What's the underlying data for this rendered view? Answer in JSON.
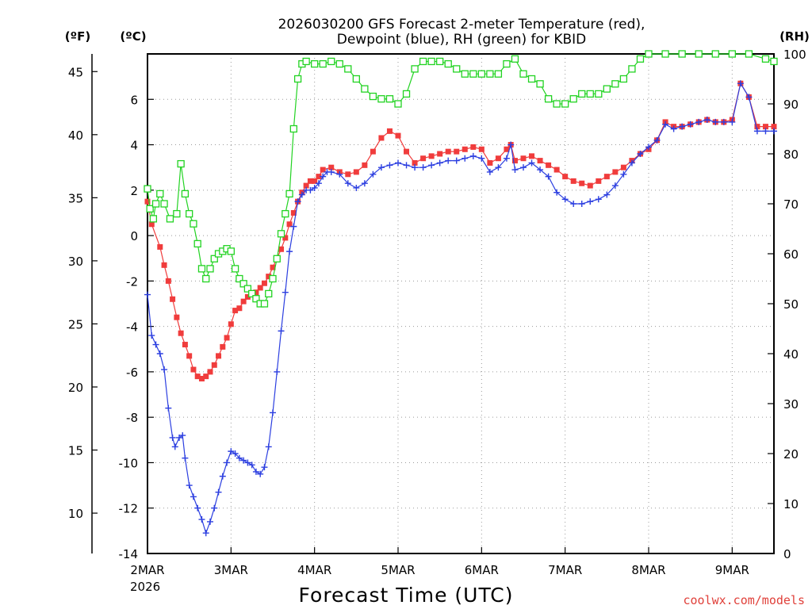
{
  "chart_data": {
    "type": "line",
    "title_lines": [
      "2026030200 GFS Forecast 2-meter Temperature (red),",
      "Dewpoint (blue), RH (green) for KBID"
    ],
    "xlabel": "Forecast Time (UTC)",
    "x_ticks": [
      "2MAR",
      "3MAR",
      "4MAR",
      "5MAR",
      "6MAR",
      "7MAR",
      "8MAR",
      "9MAR"
    ],
    "x_year": "2026",
    "xlim": [
      0,
      7.5
    ],
    "axes": {
      "fahrenheit": {
        "unit_label": "(ºF)",
        "range": [
          6.8,
          46.4
        ],
        "ticks": [
          "10",
          "15",
          "20",
          "25",
          "30",
          "35",
          "40",
          "45"
        ]
      },
      "celsius": {
        "unit_label": "(ºC)",
        "range": [
          -14,
          8
        ],
        "ticks": [
          "-14",
          "-12",
          "-10",
          "-8",
          "-6",
          "-4",
          "-2",
          "0",
          "2",
          "4",
          "6"
        ]
      },
      "rh": {
        "unit_label": "(RH)",
        "range": [
          0,
          100
        ],
        "ticks": [
          "0",
          "10",
          "20",
          "30",
          "40",
          "50",
          "60",
          "70",
          "80",
          "90",
          "100"
        ]
      }
    },
    "colors": {
      "temperature": "#f03c3c",
      "dewpoint": "#2c3fe0",
      "rh": "#22d322"
    },
    "series": [
      {
        "name": "Temperature (°C)",
        "marker": "filled-square",
        "points": [
          [
            0,
            1.5
          ],
          [
            0.05,
            0.5
          ],
          [
            0.15,
            -0.5
          ],
          [
            0.2,
            -1.3
          ],
          [
            0.25,
            -2
          ],
          [
            0.3,
            -2.8
          ],
          [
            0.35,
            -3.6
          ],
          [
            0.4,
            -4.3
          ],
          [
            0.45,
            -4.8
          ],
          [
            0.5,
            -5.3
          ],
          [
            0.55,
            -5.9
          ],
          [
            0.6,
            -6.2
          ],
          [
            0.65,
            -6.3
          ],
          [
            0.7,
            -6.2
          ],
          [
            0.75,
            -6
          ],
          [
            0.8,
            -5.7
          ],
          [
            0.85,
            -5.3
          ],
          [
            0.9,
            -4.9
          ],
          [
            0.95,
            -4.5
          ],
          [
            1,
            -3.9
          ],
          [
            1.05,
            -3.3
          ],
          [
            1.1,
            -3.2
          ],
          [
            1.15,
            -2.9
          ],
          [
            1.2,
            -2.7
          ],
          [
            1.25,
            -2.6
          ],
          [
            1.3,
            -2.5
          ],
          [
            1.35,
            -2.3
          ],
          [
            1.4,
            -2.1
          ],
          [
            1.45,
            -1.8
          ],
          [
            1.5,
            -1.4
          ],
          [
            1.55,
            -1
          ],
          [
            1.6,
            -0.6
          ],
          [
            1.65,
            -0.1
          ],
          [
            1.7,
            0.5
          ],
          [
            1.75,
            1
          ],
          [
            1.8,
            1.5
          ],
          [
            1.85,
            1.9
          ],
          [
            1.9,
            2.2
          ],
          [
            1.95,
            2.4
          ],
          [
            2,
            2.4
          ],
          [
            2.05,
            2.6
          ],
          [
            2.1,
            2.9
          ],
          [
            2.2,
            3
          ],
          [
            2.3,
            2.8
          ],
          [
            2.4,
            2.7
          ],
          [
            2.5,
            2.8
          ],
          [
            2.6,
            3.1
          ],
          [
            2.7,
            3.7
          ],
          [
            2.8,
            4.3
          ],
          [
            2.9,
            4.6
          ],
          [
            3,
            4.4
          ],
          [
            3.1,
            3.7
          ],
          [
            3.2,
            3.2
          ],
          [
            3.3,
            3.4
          ],
          [
            3.4,
            3.5
          ],
          [
            3.5,
            3.6
          ],
          [
            3.6,
            3.7
          ],
          [
            3.7,
            3.7
          ],
          [
            3.8,
            3.8
          ],
          [
            3.9,
            3.9
          ],
          [
            4,
            3.8
          ],
          [
            4.1,
            3.2
          ],
          [
            4.2,
            3.4
          ],
          [
            4.3,
            3.8
          ],
          [
            4.35,
            4
          ],
          [
            4.4,
            3.3
          ],
          [
            4.5,
            3.4
          ],
          [
            4.6,
            3.5
          ],
          [
            4.7,
            3.3
          ],
          [
            4.8,
            3.1
          ],
          [
            4.9,
            2.9
          ],
          [
            5,
            2.6
          ],
          [
            5.1,
            2.4
          ],
          [
            5.2,
            2.3
          ],
          [
            5.3,
            2.2
          ],
          [
            5.4,
            2.4
          ],
          [
            5.5,
            2.6
          ],
          [
            5.6,
            2.8
          ],
          [
            5.7,
            3
          ],
          [
            5.8,
            3.3
          ],
          [
            5.9,
            3.6
          ],
          [
            6,
            3.8
          ],
          [
            6.1,
            4.2
          ],
          [
            6.2,
            5
          ],
          [
            6.3,
            4.8
          ],
          [
            6.4,
            4.8
          ],
          [
            6.5,
            4.9
          ],
          [
            6.6,
            5
          ],
          [
            6.7,
            5.1
          ],
          [
            6.8,
            5
          ],
          [
            6.9,
            5
          ],
          [
            7,
            5.1
          ],
          [
            7.1,
            6.7
          ],
          [
            7.2,
            6.1
          ],
          [
            7.3,
            4.8
          ],
          [
            7.4,
            4.8
          ],
          [
            7.5,
            4.8
          ]
        ]
      },
      {
        "name": "Dewpoint (°C)",
        "marker": "plus",
        "points": [
          [
            0,
            -2.6
          ],
          [
            0.05,
            -4.4
          ],
          [
            0.1,
            -4.8
          ],
          [
            0.15,
            -5.2
          ],
          [
            0.2,
            -5.9
          ],
          [
            0.25,
            -7.6
          ],
          [
            0.3,
            -8.9
          ],
          [
            0.33,
            -9.3
          ],
          [
            0.38,
            -8.9
          ],
          [
            0.42,
            -8.8
          ],
          [
            0.45,
            -9.8
          ],
          [
            0.5,
            -11
          ],
          [
            0.55,
            -11.5
          ],
          [
            0.6,
            -12
          ],
          [
            0.65,
            -12.5
          ],
          [
            0.7,
            -13.1
          ],
          [
            0.75,
            -12.6
          ],
          [
            0.8,
            -12
          ],
          [
            0.85,
            -11.3
          ],
          [
            0.9,
            -10.6
          ],
          [
            0.95,
            -10
          ],
          [
            1,
            -9.5
          ],
          [
            1.05,
            -9.6
          ],
          [
            1.1,
            -9.8
          ],
          [
            1.15,
            -9.9
          ],
          [
            1.2,
            -10
          ],
          [
            1.25,
            -10.1
          ],
          [
            1.3,
            -10.4
          ],
          [
            1.35,
            -10.5
          ],
          [
            1.4,
            -10.2
          ],
          [
            1.45,
            -9.3
          ],
          [
            1.5,
            -7.8
          ],
          [
            1.55,
            -6
          ],
          [
            1.6,
            -4.2
          ],
          [
            1.65,
            -2.5
          ],
          [
            1.7,
            -0.7
          ],
          [
            1.75,
            0.4
          ],
          [
            1.8,
            1.5
          ],
          [
            1.85,
            1.8
          ],
          [
            1.9,
            2
          ],
          [
            1.95,
            2
          ],
          [
            2,
            2.1
          ],
          [
            2.05,
            2.3
          ],
          [
            2.1,
            2.6
          ],
          [
            2.15,
            2.8
          ],
          [
            2.2,
            2.8
          ],
          [
            2.3,
            2.7
          ],
          [
            2.4,
            2.3
          ],
          [
            2.5,
            2.1
          ],
          [
            2.6,
            2.3
          ],
          [
            2.7,
            2.7
          ],
          [
            2.8,
            3
          ],
          [
            2.9,
            3.1
          ],
          [
            3,
            3.2
          ],
          [
            3.1,
            3.1
          ],
          [
            3.2,
            3
          ],
          [
            3.3,
            3
          ],
          [
            3.4,
            3.1
          ],
          [
            3.5,
            3.2
          ],
          [
            3.6,
            3.3
          ],
          [
            3.7,
            3.3
          ],
          [
            3.8,
            3.4
          ],
          [
            3.9,
            3.5
          ],
          [
            4,
            3.4
          ],
          [
            4.1,
            2.8
          ],
          [
            4.2,
            3
          ],
          [
            4.3,
            3.4
          ],
          [
            4.35,
            4
          ],
          [
            4.4,
            2.9
          ],
          [
            4.5,
            3
          ],
          [
            4.6,
            3.2
          ],
          [
            4.7,
            2.9
          ],
          [
            4.8,
            2.6
          ],
          [
            4.9,
            1.9
          ],
          [
            5,
            1.6
          ],
          [
            5.1,
            1.4
          ],
          [
            5.2,
            1.4
          ],
          [
            5.3,
            1.5
          ],
          [
            5.4,
            1.6
          ],
          [
            5.5,
            1.8
          ],
          [
            5.6,
            2.2
          ],
          [
            5.7,
            2.7
          ],
          [
            5.8,
            3.2
          ],
          [
            5.9,
            3.6
          ],
          [
            6,
            3.9
          ],
          [
            6.1,
            4.2
          ],
          [
            6.2,
            4.9
          ],
          [
            6.3,
            4.7
          ],
          [
            6.4,
            4.8
          ],
          [
            6.5,
            4.9
          ],
          [
            6.6,
            5
          ],
          [
            6.7,
            5.1
          ],
          [
            6.8,
            5
          ],
          [
            6.9,
            5
          ],
          [
            7,
            5
          ],
          [
            7.1,
            6.7
          ],
          [
            7.2,
            6.1
          ],
          [
            7.3,
            4.6
          ],
          [
            7.4,
            4.6
          ],
          [
            7.5,
            4.6
          ]
        ]
      },
      {
        "name": "Relative Humidity (%)",
        "marker": "open-square",
        "points": [
          [
            0,
            73
          ],
          [
            0.03,
            69
          ],
          [
            0.07,
            67
          ],
          [
            0.1,
            70
          ],
          [
            0.15,
            72
          ],
          [
            0.2,
            70
          ],
          [
            0.27,
            67
          ],
          [
            0.35,
            68
          ],
          [
            0.4,
            78
          ],
          [
            0.45,
            72
          ],
          [
            0.5,
            68
          ],
          [
            0.55,
            66
          ],
          [
            0.6,
            62
          ],
          [
            0.65,
            57
          ],
          [
            0.7,
            55
          ],
          [
            0.75,
            57
          ],
          [
            0.8,
            59
          ],
          [
            0.85,
            60
          ],
          [
            0.9,
            60.5
          ],
          [
            0.95,
            61
          ],
          [
            1,
            60.5
          ],
          [
            1.05,
            57
          ],
          [
            1.1,
            55
          ],
          [
            1.15,
            54
          ],
          [
            1.2,
            53
          ],
          [
            1.25,
            52
          ],
          [
            1.3,
            51
          ],
          [
            1.35,
            50
          ],
          [
            1.4,
            50
          ],
          [
            1.45,
            52
          ],
          [
            1.5,
            55
          ],
          [
            1.55,
            59
          ],
          [
            1.6,
            64
          ],
          [
            1.65,
            68
          ],
          [
            1.7,
            72
          ],
          [
            1.75,
            85
          ],
          [
            1.8,
            95
          ],
          [
            1.85,
            98
          ],
          [
            1.9,
            98.5
          ],
          [
            2,
            98
          ],
          [
            2.1,
            98
          ],
          [
            2.2,
            98.5
          ],
          [
            2.3,
            98
          ],
          [
            2.4,
            97
          ],
          [
            2.5,
            95
          ],
          [
            2.6,
            93
          ],
          [
            2.7,
            91.5
          ],
          [
            2.8,
            91
          ],
          [
            2.9,
            91
          ],
          [
            3,
            90
          ],
          [
            3.1,
            92
          ],
          [
            3.2,
            97
          ],
          [
            3.3,
            98.5
          ],
          [
            3.4,
            98.5
          ],
          [
            3.5,
            98.5
          ],
          [
            3.6,
            98
          ],
          [
            3.7,
            97
          ],
          [
            3.8,
            96
          ],
          [
            3.9,
            96
          ],
          [
            4,
            96
          ],
          [
            4.1,
            96
          ],
          [
            4.2,
            96
          ],
          [
            4.3,
            98
          ],
          [
            4.4,
            99
          ],
          [
            4.5,
            96
          ],
          [
            4.6,
            95
          ],
          [
            4.7,
            94
          ],
          [
            4.8,
            91
          ],
          [
            4.9,
            90
          ],
          [
            5,
            90
          ],
          [
            5.1,
            91
          ],
          [
            5.2,
            92
          ],
          [
            5.3,
            92
          ],
          [
            5.4,
            92
          ],
          [
            5.5,
            93
          ],
          [
            5.6,
            94
          ],
          [
            5.7,
            95
          ],
          [
            5.8,
            97
          ],
          [
            5.9,
            99
          ],
          [
            6,
            100
          ],
          [
            6.2,
            100
          ],
          [
            6.4,
            100
          ],
          [
            6.6,
            100
          ],
          [
            6.8,
            100
          ],
          [
            7,
            100
          ],
          [
            7.2,
            100
          ],
          [
            7.4,
            99
          ],
          [
            7.5,
            98.5
          ]
        ]
      }
    ]
  },
  "credit": "coolwx.com/models"
}
